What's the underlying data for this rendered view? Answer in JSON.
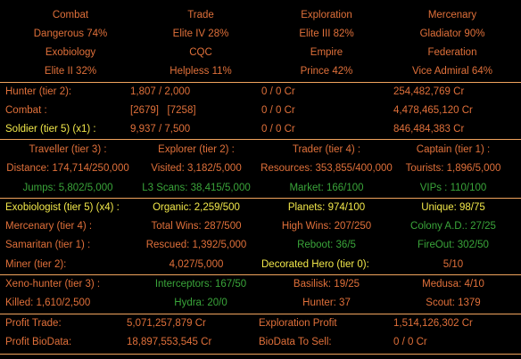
{
  "ranks": {
    "row1": [
      "Combat",
      "Trade",
      "Exploration",
      "Mercenary"
    ],
    "row2": [
      "Dangerous  74%",
      "Elite IV  28%",
      "Elite III  82%",
      "Gladiator  90%"
    ],
    "row3": [
      "Exobiology",
      "CQC",
      "Empire",
      "Federation"
    ],
    "row4": [
      "Elite II  32%",
      "Helpless  11%",
      "Prince  42%",
      "Vice Admiral  64%"
    ]
  },
  "hunter": {
    "r1": [
      "Hunter (tier 2):",
      "1,807 / 2,000",
      "0 / 0 Cr",
      "254,482,769 Cr"
    ],
    "r2": [
      "Combat :",
      "[2679]   [7258]",
      "0 / 0 Cr",
      "4,478,465,120 Cr"
    ],
    "r3": [
      "Soldier (tier 5) (x1) :",
      "9,937 / 7,500",
      "0 / 0 Cr",
      "846,484,383 Cr"
    ]
  },
  "traveller": {
    "r1": [
      "Traveller (tier 3) :",
      "Explorer (tier 2) :",
      "Trader (tier 4) :",
      "Captain (tier 1) :"
    ],
    "r2": [
      "Distance: 174,714/250,000",
      "Visited: 3,182/5,000",
      "Resources: 353,855/400,000",
      "Tourists: 1,896/5,000"
    ],
    "r3": [
      "Jumps: 5,802/5,000",
      "L3 Scans: 38,415/5,000",
      "Market: 166/100",
      "VIPs : 110/100"
    ]
  },
  "exobio": {
    "r1": [
      "Exobiologist (tier 5) (x4) :",
      "Organic: 2,259/500",
      "Planets: 974/100",
      "Unique: 98/75"
    ],
    "r2": [
      "Mercenary (tier 4) :",
      "Total Wins: 287/500",
      "High Wins: 207/250",
      "Colony A.D.: 27/25"
    ],
    "r3": [
      "Samaritan (tier 1) :",
      "Rescued: 1,392/5,000",
      "Reboot: 36/5",
      "FireOut: 302/50"
    ],
    "r4": [
      "Miner (tier 2):",
      "4,027/5,000",
      "Decorated Hero (tier 0):",
      "5/10"
    ]
  },
  "xeno": {
    "r1": [
      "Xeno-hunter (tier 3) :",
      "Interceptors: 167/50",
      "Basilisk: 19/25",
      "Medusa: 4/10"
    ],
    "r2": [
      "Killed: 1,610/2,500",
      "Hydra: 20/0",
      "Hunter: 37",
      "Scout: 1379"
    ]
  },
  "profit": {
    "r1": [
      "Profit Trade:",
      "5,071,257,879 Cr",
      "Exploration Profit",
      "1,514,126,302 Cr"
    ],
    "r2": [
      "Profit BioData:",
      "18,897,553,545 Cr",
      "BioData To Sell:",
      "0 / 0 Cr"
    ]
  },
  "colors": {
    "orange": "#e0703a",
    "green": "#3aa53a",
    "yellow": "#f2e84a",
    "divider": "#f1a45e",
    "background": "#000000"
  }
}
